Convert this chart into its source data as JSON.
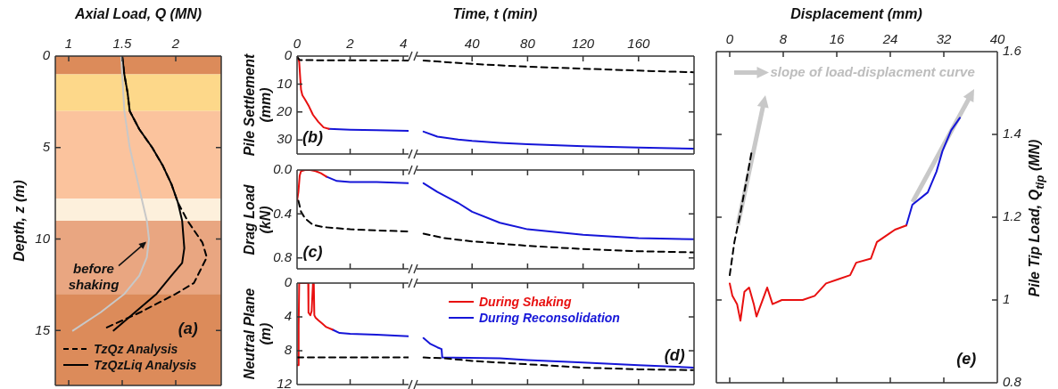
{
  "chart_data": [
    {
      "type": "line",
      "xlabel": "Axial Load, Q (MN)",
      "ylabel": "Depth, z (m)",
      "xlim": [
        0.875,
        2.425
      ],
      "ylim": [
        18,
        0
      ],
      "xticks": [
        1,
        1.5,
        2
      ],
      "yticks": [
        0,
        5,
        10,
        15
      ],
      "legend": "bottom left",
      "bands": [
        {
          "axis": "y",
          "from": 0,
          "to": 1,
          "color": "#dc8b5a"
        },
        {
          "axis": "y",
          "from": 1,
          "to": 3,
          "color": "#fdd88a"
        },
        {
          "axis": "y",
          "from": 3,
          "to": 7.8,
          "color": "#fbc39d"
        },
        {
          "axis": "y",
          "from": 7.8,
          "to": 9,
          "color": "#fdf0dc"
        },
        {
          "axis": "y",
          "from": 9,
          "to": 13,
          "color": "#e9a681"
        },
        {
          "axis": "y",
          "from": 13,
          "to": 18,
          "color": "#dc8b5a"
        }
      ],
      "annotations": [
        "(a)",
        {
          "text": "before shaking",
          "x": 1.75,
          "y": 10
        }
      ],
      "series": [
        {
          "color": "#c8c8c8",
          "x": [
            1.49,
            1.5,
            1.52,
            1.57,
            1.63,
            1.69,
            1.73,
            1.75,
            1.73,
            1.66,
            1.52,
            1.3,
            1.04
          ],
          "values": [
            0,
            1,
            3,
            5,
            6.5,
            8,
            9,
            10,
            11,
            12,
            13,
            14,
            15
          ]
        },
        {
          "name": "TzQz Analysis",
          "color": "#000000",
          "line_style": "dashed",
          "x": [
            1.5,
            1.52,
            1.55,
            1.57,
            1.66,
            1.78,
            1.88,
            1.96,
            2.02,
            2.11,
            2.25,
            2.29,
            2.17,
            2,
            1.67,
            1.33
          ],
          "values": [
            0,
            1,
            2,
            3,
            4,
            5,
            6,
            7,
            8,
            9,
            10.2,
            11,
            12.4,
            13,
            14,
            14.9
          ]
        },
        {
          "name": "TzQzLiq Analysis",
          "color": "#000000",
          "x": [
            1.5,
            1.52,
            1.55,
            1.57,
            1.66,
            1.78,
            1.88,
            1.96,
            2.02,
            2.06,
            2.08,
            2.06,
            1.96,
            1.82,
            1.62,
            1.42
          ],
          "values": [
            0,
            1,
            2,
            3,
            4,
            5,
            6,
            7,
            8,
            9,
            10.5,
            11.3,
            12,
            13,
            14,
            15
          ]
        }
      ]
    },
    {
      "type": "line",
      "xlabel": "Time, t (min)",
      "ylabel": "Pile Settlement (mm)",
      "xlim": [
        0,
        4.2
      ],
      "ylim": [
        35,
        0
      ],
      "xticks": [
        0,
        2,
        4
      ],
      "yticks": [
        0,
        10,
        20,
        30
      ],
      "annotations": [
        "(b)"
      ],
      "series": [
        {
          "color": "#000000",
          "line_style": "dashed",
          "x": [
            0,
            0.1,
            1,
            4.2
          ],
          "values": [
            0.3,
            1.4,
            1.5,
            1.6
          ]
        },
        {
          "color": "#e81010",
          "x": [
            0,
            0.08,
            0.12,
            0.15,
            0.2,
            0.3,
            0.45,
            0.6,
            0.8,
            1,
            1.2
          ],
          "values": [
            0,
            2,
            8,
            12,
            14,
            15.5,
            18,
            21,
            23.5,
            25.5,
            26
          ]
        },
        {
          "color": "#1515d8",
          "x": [
            1.2,
            2,
            3,
            4.2
          ],
          "values": [
            26,
            26.3,
            26.5,
            26.7
          ]
        }
      ]
    },
    {
      "type": "line",
      "xlim": [
        0,
        200
      ],
      "ylim": [
        35,
        0
      ],
      "xticks": [
        40,
        80,
        120,
        160
      ],
      "yticks": [
        0,
        10,
        20,
        30
      ],
      "tick_labels": "x",
      "series": [
        {
          "color": "#000000",
          "line_style": "dashed",
          "x": [
            5,
            40,
            80,
            120,
            160,
            200
          ],
          "values": [
            1.6,
            2.8,
            3.8,
            4.5,
            5.2,
            5.8
          ]
        },
        {
          "color": "#1515d8",
          "x": [
            5,
            15,
            30,
            40,
            60,
            80,
            120,
            160,
            200
          ],
          "values": [
            27,
            28.8,
            29.8,
            30.3,
            31,
            31.5,
            32.2,
            32.7,
            33.1
          ]
        }
      ]
    },
    {
      "type": "line",
      "ylabel": "Drag Load (kN)",
      "xlim": [
        0,
        4.2
      ],
      "ylim": [
        0.9,
        0
      ],
      "xticks": [
        0,
        2,
        4
      ],
      "yticks": [
        {
          "value": 0,
          "label": "0.0"
        },
        0.4,
        0.8
      ],
      "tick_labels": "y",
      "annotations": [
        "(c)"
      ],
      "series": [
        {
          "color": "#000000",
          "line_style": "dashed",
          "x": [
            0.05,
            0.15,
            0.3,
            0.6,
            1,
            2,
            3,
            4.2
          ],
          "values": [
            0.28,
            0.38,
            0.44,
            0.5,
            0.52,
            0.54,
            0.55,
            0.56
          ]
        },
        {
          "color": "#e81010",
          "x": [
            0,
            0.05,
            0.1,
            0.15,
            0.3,
            0.5,
            0.7,
            0.9,
            1.1
          ],
          "values": [
            0.28,
            0.2,
            0.05,
            0.01,
            0,
            0,
            0.01,
            0.03,
            0.06
          ]
        },
        {
          "color": "#1515d8",
          "x": [
            1.1,
            1.5,
            2,
            3,
            4.2
          ],
          "values": [
            0.06,
            0.1,
            0.11,
            0.11,
            0.12
          ]
        }
      ]
    },
    {
      "type": "line",
      "xlim": [
        0,
        200
      ],
      "ylim": [
        0.9,
        0
      ],
      "xticks": [
        40,
        80,
        120,
        160
      ],
      "yticks": [
        0,
        0.4,
        0.8
      ],
      "tick_labels": false,
      "series": [
        {
          "color": "#000000",
          "line_style": "dashed",
          "x": [
            5,
            20,
            40,
            80,
            120,
            160,
            200
          ],
          "values": [
            0.58,
            0.62,
            0.65,
            0.69,
            0.72,
            0.74,
            0.75
          ]
        },
        {
          "color": "#1515d8",
          "x": [
            5,
            15,
            30,
            40,
            60,
            80,
            120,
            160,
            200
          ],
          "values": [
            0.12,
            0.2,
            0.3,
            0.38,
            0.48,
            0.54,
            0.59,
            0.62,
            0.63
          ]
        }
      ]
    },
    {
      "type": "line",
      "ylabel": "Neutral Plane (m)",
      "xlim": [
        0,
        4.2
      ],
      "ylim": [
        12,
        0
      ],
      "xticks": [
        0,
        2,
        4
      ],
      "yticks": [
        0,
        4,
        8,
        12
      ],
      "tick_labels": "y",
      "legend": "right",
      "series": [
        {
          "color": "#000000",
          "line_style": "dashed",
          "x": [
            0,
            4.2
          ],
          "values": [
            8.8,
            8.8
          ]
        },
        {
          "name": "During Shaking",
          "color": "#e81010",
          "x": [
            0,
            0.04,
            0.06,
            0.08,
            0.42,
            0.43,
            0.5,
            0.55,
            0.6,
            0.63,
            0.65,
            0.7,
            0.8,
            0.95,
            1.1,
            1.33
          ],
          "values": [
            9.7,
            9.7,
            5,
            0,
            0,
            3.5,
            3.8,
            3.3,
            0,
            0,
            3.8,
            4.1,
            4.4,
            4.8,
            5.2,
            5.5
          ]
        },
        {
          "name": "During Reconsolidation",
          "color": "#1515d8",
          "x": [
            1.33,
            1.6,
            2,
            3,
            4.2
          ],
          "values": [
            5.5,
            5.9,
            6,
            6.1,
            6.3
          ]
        }
      ]
    },
    {
      "type": "line",
      "xlim": [
        0,
        200
      ],
      "ylim": [
        12,
        0
      ],
      "xticks": [
        40,
        80,
        120,
        160
      ],
      "yticks": [
        0,
        4,
        8,
        12
      ],
      "tick_labels": false,
      "annotations": [
        "(d)"
      ],
      "series": [
        {
          "color": "#000000",
          "line_style": "dashed",
          "x": [
            5,
            20,
            40,
            70,
            120,
            160,
            200
          ],
          "values": [
            8.8,
            8.9,
            9.2,
            9.5,
            10,
            10.2,
            10.3
          ]
        },
        {
          "color": "#1515d8",
          "x": [
            5,
            10,
            15,
            18,
            18.5,
            60,
            80,
            120,
            160,
            200
          ],
          "values": [
            6.5,
            7.2,
            7.6,
            7.8,
            8.8,
            8.9,
            9.1,
            9.4,
            9.7,
            10
          ]
        }
      ]
    },
    {
      "type": "line",
      "xlabel": "Displacement (mm)",
      "ylabel": "Pile Tip Load, Q$_{tip}$ (MN)",
      "xlim": [
        -2,
        40
      ],
      "ylim": [
        0.8,
        1.6
      ],
      "xticks": [
        0,
        8,
        16,
        24,
        32,
        40
      ],
      "yticks": [
        0.8,
        1,
        1.2,
        1.4,
        1.6
      ],
      "annotations": [
        "(e)",
        "slope of load-displacment curve"
      ],
      "series": [
        {
          "color": "#000000",
          "line_style": "dashed",
          "x": [
            0,
            0.7,
            1.6,
            2.4,
            3.3
          ],
          "values": [
            1.06,
            1.14,
            1.21,
            1.28,
            1.36
          ]
        },
        {
          "color": "#e81010",
          "x": [
            0,
            0.4,
            1.1,
            1.6,
            2.2,
            2.9,
            3.6,
            4,
            5.6,
            6.4,
            7.8,
            9.6,
            10.9,
            12.7,
            14.4,
            16.2,
            18,
            18.9,
            21.1,
            22,
            23.8,
            24.7,
            26.4
          ],
          "values": [
            1.04,
            1.01,
            0.99,
            0.95,
            1.02,
            1.03,
            0.99,
            0.96,
            1.03,
            0.99,
            1,
            1,
            1,
            1.01,
            1.04,
            1.05,
            1.06,
            1.09,
            1.1,
            1.14,
            1.16,
            1.17,
            1.18
          ]
        },
        {
          "color": "#1515d8",
          "x": [
            26.4,
            27.3,
            29.6,
            30.9,
            31.8,
            33.1,
            34.4
          ],
          "values": [
            1.18,
            1.23,
            1.26,
            1.31,
            1.36,
            1.41,
            1.44
          ]
        }
      ]
    }
  ]
}
